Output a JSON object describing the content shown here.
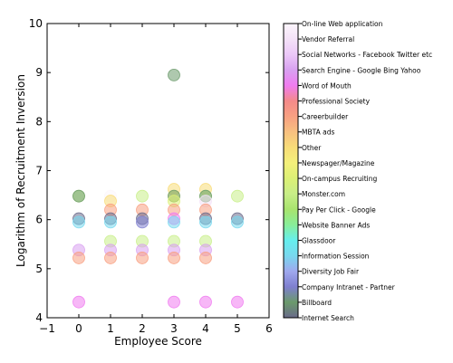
{
  "chart_data": {
    "type": "scatter",
    "xlabel": "Employee Score",
    "ylabel": "Logarithm of Recruitment Inversion",
    "xlim": [
      -1,
      6
    ],
    "ylim": [
      4,
      10
    ],
    "xticks": [
      "−1",
      "0",
      "1",
      "2",
      "3",
      "4",
      "5",
      "6"
    ],
    "yticks": [
      "4",
      "5",
      "6",
      "7",
      "8",
      "9",
      "10"
    ],
    "grid": false,
    "colorbar": {
      "position": "right",
      "categories": [
        "Internet Search",
        "Billboard",
        "Company Intranet - Partner",
        "Diversity Job Fair",
        "Information Session",
        "Glassdoor",
        "Website Banner Ads",
        "Pay Per Click - Google",
        "Monster.com",
        "On-campus Recruiting",
        "Newspager/Magazine",
        "Other",
        "MBTA ads",
        "Careerbuilder",
        "Professional Society",
        "Word of Mouth",
        "Search Engine - Google Bing Yahoo",
        "Social Networks - Facebook Twitter etc",
        "Vendor Referral",
        "On-line Web application"
      ],
      "colors": [
        "#6a6a8a",
        "#6b9a6b",
        "#7f7fd0",
        "#9fa8ee",
        "#78d8ee",
        "#66eeee",
        "#88ee99",
        "#a8e46e",
        "#c8ee88",
        "#dcf075",
        "#f4f07a",
        "#f8dc78",
        "#f8c080",
        "#f8a082",
        "#f48a8a",
        "#f07cf0",
        "#d8a0f0",
        "#ecc8f8",
        "#f4e2f8",
        "#fcf6fc"
      ]
    },
    "points": [
      {
        "x": 0,
        "y": 6.48,
        "source": "Monster.com"
      },
      {
        "x": 0,
        "y": 6.48,
        "source": "Billboard"
      },
      {
        "x": 0,
        "y": 6.02,
        "source": "Internet Search"
      },
      {
        "x": 0,
        "y": 5.95,
        "source": "Information Session"
      },
      {
        "x": 0,
        "y": 5.38,
        "source": "Search Engine - Google Bing Yahoo"
      },
      {
        "x": 0,
        "y": 5.22,
        "source": "Careerbuilder"
      },
      {
        "x": 0,
        "y": 4.32,
        "source": "Word of Mouth"
      },
      {
        "x": 1,
        "y": 6.48,
        "source": "On-line Web application"
      },
      {
        "x": 1,
        "y": 6.38,
        "source": "Other"
      },
      {
        "x": 1,
        "y": 6.2,
        "source": "Careerbuilder"
      },
      {
        "x": 1,
        "y": 6.02,
        "source": "Internet Search"
      },
      {
        "x": 1,
        "y": 5.95,
        "source": "Information Session"
      },
      {
        "x": 1,
        "y": 5.56,
        "source": "Monster.com"
      },
      {
        "x": 1,
        "y": 5.38,
        "source": "Search Engine - Google Bing Yahoo"
      },
      {
        "x": 1,
        "y": 5.22,
        "source": "Careerbuilder"
      },
      {
        "x": 2,
        "y": 6.48,
        "source": "Monster.com"
      },
      {
        "x": 2,
        "y": 6.2,
        "source": "Careerbuilder"
      },
      {
        "x": 2,
        "y": 6.02,
        "source": "Internet Search"
      },
      {
        "x": 2,
        "y": 5.95,
        "source": "Company Intranet - Partner"
      },
      {
        "x": 2,
        "y": 5.56,
        "source": "Monster.com"
      },
      {
        "x": 2,
        "y": 5.38,
        "source": "Search Engine - Google Bing Yahoo"
      },
      {
        "x": 2,
        "y": 5.22,
        "source": "Careerbuilder"
      },
      {
        "x": 3,
        "y": 8.95,
        "source": "Billboard"
      },
      {
        "x": 3,
        "y": 6.62,
        "source": "Other"
      },
      {
        "x": 3,
        "y": 6.48,
        "source": "Newspager/Magazine"
      },
      {
        "x": 3,
        "y": 6.48,
        "source": "Billboard"
      },
      {
        "x": 3,
        "y": 6.38,
        "source": "On-campus Recruiting"
      },
      {
        "x": 3,
        "y": 6.2,
        "source": "Careerbuilder"
      },
      {
        "x": 3,
        "y": 6.02,
        "source": "Word of Mouth"
      },
      {
        "x": 3,
        "y": 5.95,
        "source": "Information Session"
      },
      {
        "x": 3,
        "y": 5.56,
        "source": "Monster.com"
      },
      {
        "x": 3,
        "y": 5.38,
        "source": "Search Engine - Google Bing Yahoo"
      },
      {
        "x": 3,
        "y": 5.22,
        "source": "Careerbuilder"
      },
      {
        "x": 3,
        "y": 4.32,
        "source": "Word of Mouth"
      },
      {
        "x": 4,
        "y": 6.62,
        "source": "Other"
      },
      {
        "x": 4,
        "y": 6.48,
        "source": "Monster.com"
      },
      {
        "x": 4,
        "y": 6.48,
        "source": "Billboard"
      },
      {
        "x": 4,
        "y": 6.38,
        "source": "Vendor Referral"
      },
      {
        "x": 4,
        "y": 6.2,
        "source": "Careerbuilder"
      },
      {
        "x": 4,
        "y": 6.02,
        "source": "Internet Search"
      },
      {
        "x": 4,
        "y": 5.95,
        "source": "Information Session"
      },
      {
        "x": 4,
        "y": 5.56,
        "source": "Monster.com"
      },
      {
        "x": 4,
        "y": 5.38,
        "source": "Search Engine - Google Bing Yahoo"
      },
      {
        "x": 4,
        "y": 5.22,
        "source": "Careerbuilder"
      },
      {
        "x": 4,
        "y": 4.32,
        "source": "Word of Mouth"
      },
      {
        "x": 5,
        "y": 6.48,
        "source": "Monster.com"
      },
      {
        "x": 5,
        "y": 6.02,
        "source": "Internet Search"
      },
      {
        "x": 5,
        "y": 5.95,
        "source": "Information Session"
      },
      {
        "x": 5,
        "y": 4.32,
        "source": "Word of Mouth"
      }
    ]
  }
}
